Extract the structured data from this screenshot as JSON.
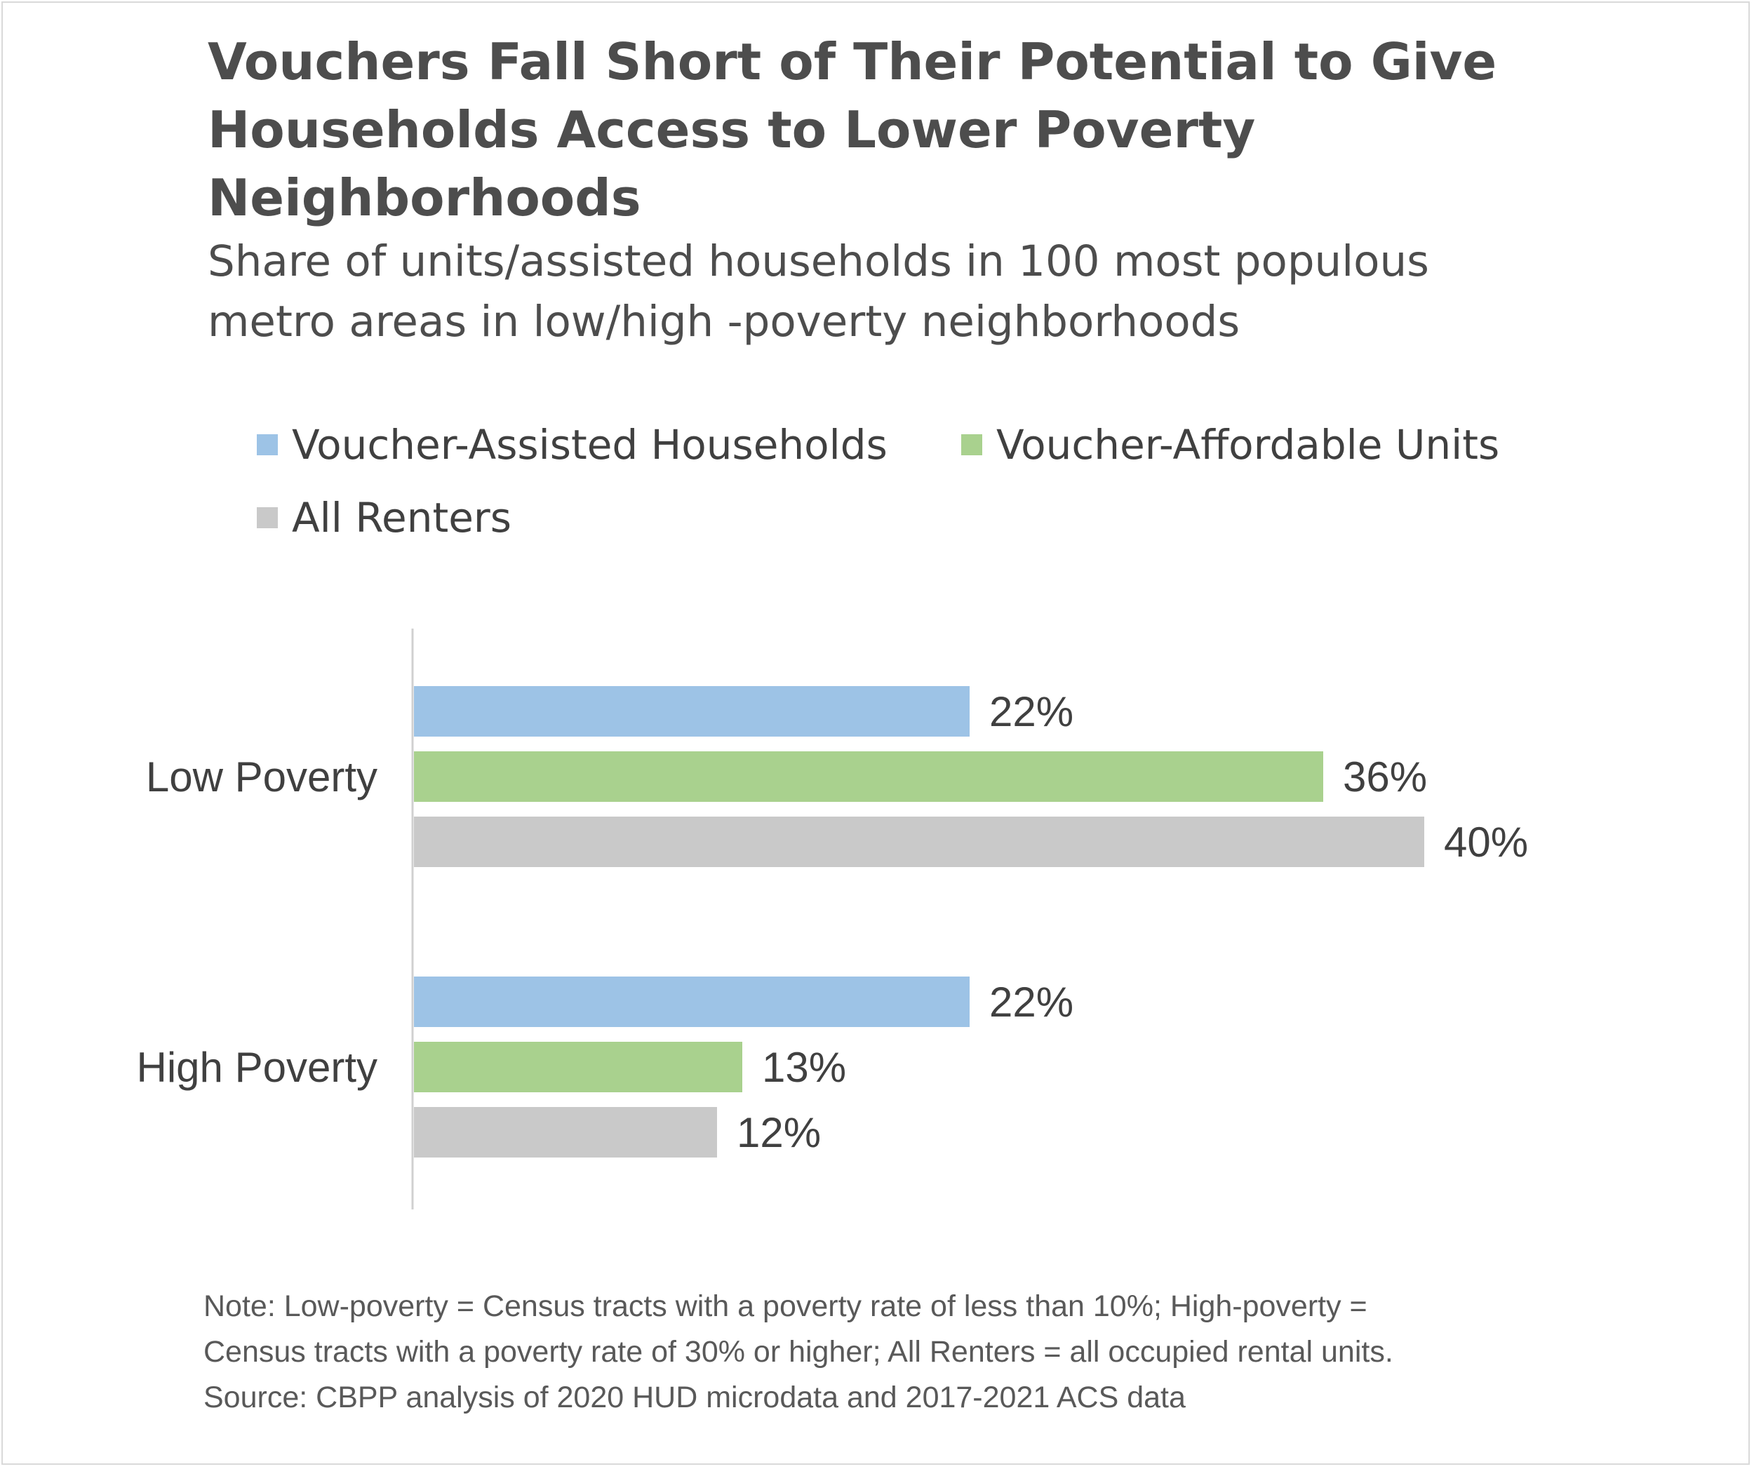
{
  "title": {
    "line1": "Vouchers Fall Short of Their Potential to Give",
    "line2": "Households Access to Lower Poverty",
    "line3": "Neighborhoods"
  },
  "subtitle": {
    "line1": "Share of units/assisted households in 100 most populous",
    "line2": "metro areas in low/high -poverty neighborhoods"
  },
  "colors": {
    "voucher_assisted": "#9dc3e6",
    "voucher_affordable": "#a9d18e",
    "all_renters": "#c9c9c9",
    "axis": "#d0d0d0"
  },
  "chart_data": {
    "type": "bar",
    "orientation": "horizontal",
    "categories": [
      "Low Poverty",
      "High Poverty"
    ],
    "series": [
      {
        "name": "Voucher-Assisted Households",
        "values": [
          22,
          22
        ],
        "labels": [
          "22%",
          "22%"
        ]
      },
      {
        "name": "Voucher-Affordable Units",
        "values": [
          36,
          13
        ],
        "labels": [
          "36%",
          "13%"
        ]
      },
      {
        "name": "All Renters",
        "values": [
          40,
          12
        ],
        "labels": [
          "40%",
          "12%"
        ]
      }
    ],
    "unit": "%",
    "xlim": [
      0,
      40
    ],
    "grid": false,
    "legend_position": "top"
  },
  "footnote": {
    "line1": "Note: Low-poverty = Census tracts with a poverty rate of less than 10%; High-poverty =",
    "line2": "Census tracts with a poverty rate of 30% or higher; All Renters = all occupied rental units.",
    "line3": "Source: CBPP analysis of 2020 HUD microdata and 2017-2021 ACS data"
  }
}
